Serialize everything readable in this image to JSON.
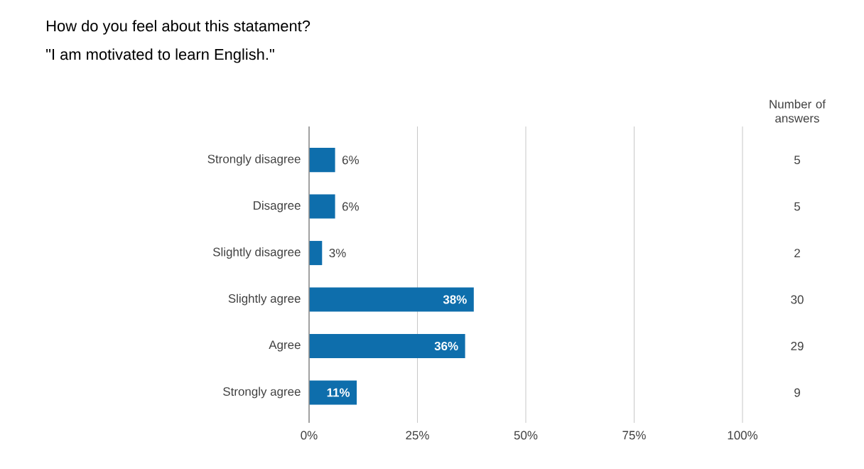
{
  "chart_data": {
    "type": "bar",
    "orientation": "horizontal",
    "title": "How do you feel about this statament?",
    "subtitle": "\"I am motivated to learn English.\"",
    "categories": [
      "Strongly disagree",
      "Disagree",
      "Slightly disagree",
      "Slightly agree",
      "Agree",
      "Strongly agree"
    ],
    "values": [
      6,
      6,
      3,
      38,
      36,
      11
    ],
    "value_labels": [
      "6%",
      "6%",
      "3%",
      "38%",
      "36%",
      "11%"
    ],
    "color": "#0e6eac",
    "xlim": [
      0,
      100
    ],
    "xticks": [
      {
        "value": 0,
        "label": "0%"
      },
      {
        "value": 25,
        "label": "25%"
      },
      {
        "value": 50,
        "label": "50%"
      },
      {
        "value": 75,
        "label": "75%"
      },
      {
        "value": 100,
        "label": "100%"
      }
    ],
    "grid": "x",
    "annotations": [
      "Number of answers",
      "5",
      "5",
      "2",
      "30",
      "29",
      "9"
    ]
  }
}
